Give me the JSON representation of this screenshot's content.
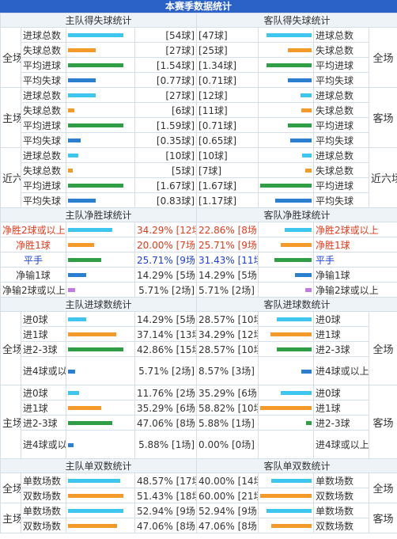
{
  "title": "本赛季数据统计",
  "goals_section": {
    "home_header": "主队得失球统计",
    "away_header": "客队得失球统计",
    "groups": [
      {
        "label": "全场",
        "away_label": "全场",
        "rows": [
          {
            "name": "进球总数",
            "home": "[54球]",
            "away": "[47球]",
            "color": "cyan",
            "hbar": 1.0,
            "abar": 0.87
          },
          {
            "name": "失球总数",
            "home": "[27球]",
            "away": "[25球]",
            "color": "orange",
            "hbar": 0.5,
            "abar": 0.46
          },
          {
            "name": "平均进球",
            "home": "[1.54球]",
            "away": "[1.34球]",
            "color": "green",
            "hbar": 1.0,
            "abar": 0.87
          },
          {
            "name": "平均失球",
            "home": "[0.77球]",
            "away": "[0.71球]",
            "color": "blue",
            "hbar": 0.5,
            "abar": 0.46
          }
        ]
      },
      {
        "label": "主场",
        "away_label": "客场",
        "rows": [
          {
            "name": "进球总数",
            "home": "[27球]",
            "away": "[12球]",
            "color": "cyan",
            "hbar": 0.5,
            "abar": 0.22
          },
          {
            "name": "失球总数",
            "home": "[6球]",
            "away": "[11球]",
            "color": "orange",
            "hbar": 0.11,
            "abar": 0.2
          },
          {
            "name": "平均进球",
            "home": "[1.59球]",
            "away": "[0.71球]",
            "color": "green",
            "hbar": 1.0,
            "abar": 0.46
          },
          {
            "name": "平均失球",
            "home": "[0.35球]",
            "away": "[0.65球]",
            "color": "blue",
            "hbar": 0.23,
            "abar": 0.42
          }
        ]
      },
      {
        "label": "近六场",
        "away_label": "近六场",
        "rows": [
          {
            "name": "进球总数",
            "home": "[10球]",
            "away": "[10球]",
            "color": "cyan",
            "hbar": 0.19,
            "abar": 0.19
          },
          {
            "name": "失球总数",
            "home": "[5球]",
            "away": "[7球]",
            "color": "orange",
            "hbar": 0.09,
            "abar": 0.13
          },
          {
            "name": "平均进球",
            "home": "[1.67球]",
            "away": "[1.67球]",
            "color": "green",
            "hbar": 1.0,
            "abar": 1.0
          },
          {
            "name": "平均失球",
            "home": "[0.83球]",
            "away": "[1.17球]",
            "color": "blue",
            "hbar": 0.5,
            "abar": 0.7
          }
        ]
      }
    ]
  },
  "net_section": {
    "home_header": "主队净胜球统计",
    "away_header": "客队净胜球统计",
    "rows": [
      {
        "name": "净胜2球或以上",
        "home": "34.29% [12场]",
        "away": "22.86% [8场]",
        "color": "cyan",
        "style": "red",
        "hbar": 0.8,
        "abar": 0.53
      },
      {
        "name": "净胜1球",
        "home": "20.00% [7场]",
        "away": "25.71% [9场]",
        "color": "orange",
        "style": "red",
        "hbar": 0.47,
        "abar": 0.6
      },
      {
        "name": "平手",
        "home": "25.71% [9场]",
        "away": "31.43% [11场]",
        "color": "green",
        "style": "blu",
        "hbar": 0.6,
        "abar": 0.73
      },
      {
        "name": "净输1球",
        "home": "14.29% [5场]",
        "away": "14.29% [5场]",
        "color": "blue",
        "style": "",
        "hbar": 0.33,
        "abar": 0.33
      },
      {
        "name": "净输2球或以上",
        "home": "5.71% [2场]",
        "away": "5.71% [2场]",
        "color": "violet",
        "style": "",
        "hbar": 0.13,
        "abar": 0.13
      }
    ]
  },
  "score_section": {
    "home_header": "主队进球数统计",
    "away_header": "客队进球数统计",
    "groups": [
      {
        "label": "全场",
        "away_label": "全场",
        "rows": [
          {
            "name": "进0球",
            "home": "14.29% [5场]",
            "away": "28.57% [10场]",
            "color": "cyan",
            "hbar": 0.33,
            "abar": 0.67,
            "tall": false
          },
          {
            "name": "进1球",
            "home": "37.14% [13场]",
            "away": "34.29% [12场]",
            "color": "orange",
            "hbar": 0.87,
            "abar": 0.8,
            "tall": false
          },
          {
            "name": "进2-3球",
            "home": "42.86% [15场]",
            "away": "28.57% [10场]",
            "color": "green",
            "hbar": 1.0,
            "abar": 0.67,
            "tall": false
          },
          {
            "name": "进4球或以上",
            "home": "5.71% [2场]",
            "away": "8.57% [3场]",
            "color": "blue",
            "hbar": 0.13,
            "abar": 0.2,
            "tall": true
          }
        ]
      },
      {
        "label": "主场",
        "away_label": "客场",
        "rows": [
          {
            "name": "进0球",
            "home": "11.76% [2场]",
            "away": "35.29% [6场]",
            "color": "cyan",
            "hbar": 0.2,
            "abar": 0.6,
            "tall": false
          },
          {
            "name": "进1球",
            "home": "35.29% [6场]",
            "away": "58.82% [10场]",
            "color": "orange",
            "hbar": 0.6,
            "abar": 1.0,
            "tall": false
          },
          {
            "name": "进2-3球",
            "home": "47.06% [8场]",
            "away": "5.88% [1场]",
            "color": "green",
            "hbar": 0.8,
            "abar": 0.1,
            "tall": false
          },
          {
            "name": "进4球或以上",
            "home": "5.88% [1场]",
            "away": "0.00% [0场]",
            "color": "blue",
            "hbar": 0.1,
            "abar": 0.0,
            "tall": true
          }
        ]
      }
    ]
  },
  "oddeven_section": {
    "home_header": "主队单双数统计",
    "away_header": "客队单双数统计",
    "groups": [
      {
        "label": "全场",
        "away_label": "全场",
        "rows": [
          {
            "name": "单数场数",
            "home": "48.57% [17场]",
            "away": "40.00% [14场]",
            "color": "cyan",
            "hbar": 0.94,
            "abar": 0.78
          },
          {
            "name": "双数场数",
            "home": "51.43% [18场]",
            "away": "60.00% [21场]",
            "color": "orange",
            "hbar": 1.0,
            "abar": 1.0
          }
        ]
      },
      {
        "label": "主场",
        "away_label": "客场",
        "rows": [
          {
            "name": "单数场数",
            "home": "52.94% [9场]",
            "away": "52.94% [9场]",
            "color": "cyan",
            "hbar": 1.0,
            "abar": 0.88
          },
          {
            "name": "双数场数",
            "home": "47.06% [8场]",
            "away": "47.06% [8场]",
            "color": "orange",
            "hbar": 0.89,
            "abar": 0.78
          }
        ]
      }
    ]
  }
}
